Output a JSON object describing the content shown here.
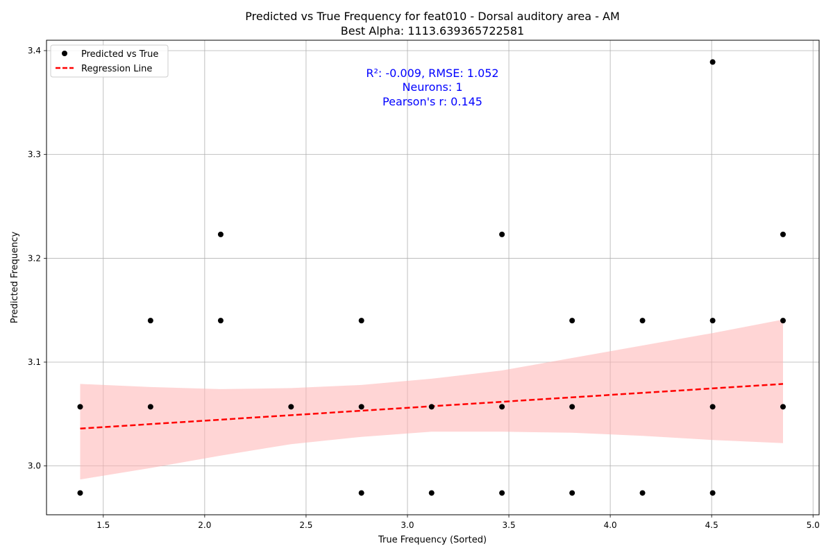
{
  "chart_data": {
    "type": "scatter",
    "title": "Predicted vs True Frequency for feat010 - Dorsal auditory area - AM",
    "subtitle": "Best Alpha: 1113.639365722581",
    "xlabel": "True Frequency (Sorted)",
    "ylabel": "Predicted Frequency",
    "xlim": [
      1.22,
      5.03
    ],
    "ylim": [
      2.953,
      3.41
    ],
    "xticks": [
      "1.5",
      "2.0",
      "2.5",
      "3.0",
      "3.5",
      "4.0",
      "4.5",
      "5.0"
    ],
    "yticks": [
      "3.0",
      "3.1",
      "3.2",
      "3.3",
      "3.4"
    ],
    "grid": true,
    "legend_position": "top-left",
    "annotation": {
      "lines": [
        "R²: -0.009, RMSE: 1.052",
        "Neurons: 1",
        "Pearson's r: 0.145"
      ],
      "color": "#0000ff"
    },
    "series": [
      {
        "name": "Predicted vs True",
        "kind": "scatter",
        "color": "#000000",
        "points": [
          {
            "x": 1.386,
            "y": 3.057
          },
          {
            "x": 1.386,
            "y": 2.974
          },
          {
            "x": 1.733,
            "y": 3.14
          },
          {
            "x": 1.733,
            "y": 3.057
          },
          {
            "x": 2.079,
            "y": 3.223
          },
          {
            "x": 2.079,
            "y": 3.14
          },
          {
            "x": 2.426,
            "y": 3.057
          },
          {
            "x": 2.773,
            "y": 3.14
          },
          {
            "x": 2.773,
            "y": 3.057
          },
          {
            "x": 2.773,
            "y": 2.974
          },
          {
            "x": 3.119,
            "y": 3.057
          },
          {
            "x": 3.119,
            "y": 2.974
          },
          {
            "x": 3.466,
            "y": 3.223
          },
          {
            "x": 3.466,
            "y": 3.057
          },
          {
            "x": 3.466,
            "y": 2.974
          },
          {
            "x": 3.812,
            "y": 3.14
          },
          {
            "x": 3.812,
            "y": 3.057
          },
          {
            "x": 3.812,
            "y": 2.974
          },
          {
            "x": 4.159,
            "y": 3.14
          },
          {
            "x": 4.159,
            "y": 2.974
          },
          {
            "x": 4.505,
            "y": 3.389
          },
          {
            "x": 4.505,
            "y": 3.14
          },
          {
            "x": 4.505,
            "y": 3.057
          },
          {
            "x": 4.505,
            "y": 2.974
          },
          {
            "x": 4.852,
            "y": 3.223
          },
          {
            "x": 4.852,
            "y": 3.14
          },
          {
            "x": 4.852,
            "y": 3.057
          }
        ]
      },
      {
        "name": "Regression Line",
        "kind": "line",
        "color": "#ff0000",
        "line_style": "dashed",
        "points": [
          {
            "x": 1.386,
            "y": 3.036
          },
          {
            "x": 4.852,
            "y": 3.079
          }
        ]
      }
    ],
    "confidence_band": {
      "color": "#ffb3b3",
      "upper": [
        {
          "x": 1.386,
          "y": 3.079
        },
        {
          "x": 1.733,
          "y": 3.076
        },
        {
          "x": 2.079,
          "y": 3.074
        },
        {
          "x": 2.426,
          "y": 3.075
        },
        {
          "x": 2.773,
          "y": 3.078
        },
        {
          "x": 3.119,
          "y": 3.084
        },
        {
          "x": 3.466,
          "y": 3.092
        },
        {
          "x": 3.812,
          "y": 3.104
        },
        {
          "x": 4.159,
          "y": 3.116
        },
        {
          "x": 4.505,
          "y": 3.128
        },
        {
          "x": 4.852,
          "y": 3.141
        }
      ],
      "lower": [
        {
          "x": 1.386,
          "y": 2.987
        },
        {
          "x": 1.733,
          "y": 2.998
        },
        {
          "x": 2.079,
          "y": 3.01
        },
        {
          "x": 2.426,
          "y": 3.021
        },
        {
          "x": 2.773,
          "y": 3.028
        },
        {
          "x": 3.119,
          "y": 3.033
        },
        {
          "x": 3.466,
          "y": 3.033
        },
        {
          "x": 3.812,
          "y": 3.032
        },
        {
          "x": 4.159,
          "y": 3.029
        },
        {
          "x": 4.505,
          "y": 3.025
        },
        {
          "x": 4.852,
          "y": 3.022
        }
      ]
    }
  }
}
